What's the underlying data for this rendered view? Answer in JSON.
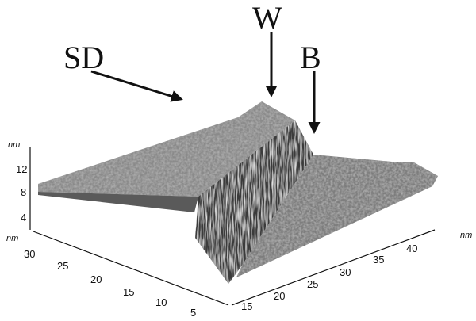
{
  "annotations": [
    "SD",
    "W",
    "B"
  ],
  "z_axis": {
    "unit": "nm",
    "ticks": [
      12,
      8,
      4
    ]
  },
  "left_axis": {
    "unit": "nm",
    "ticks": [
      30,
      25,
      20,
      15,
      10,
      5
    ]
  },
  "right_axis": {
    "unit": "nm",
    "ticks": [
      15,
      20,
      25,
      30,
      35,
      40
    ]
  }
}
